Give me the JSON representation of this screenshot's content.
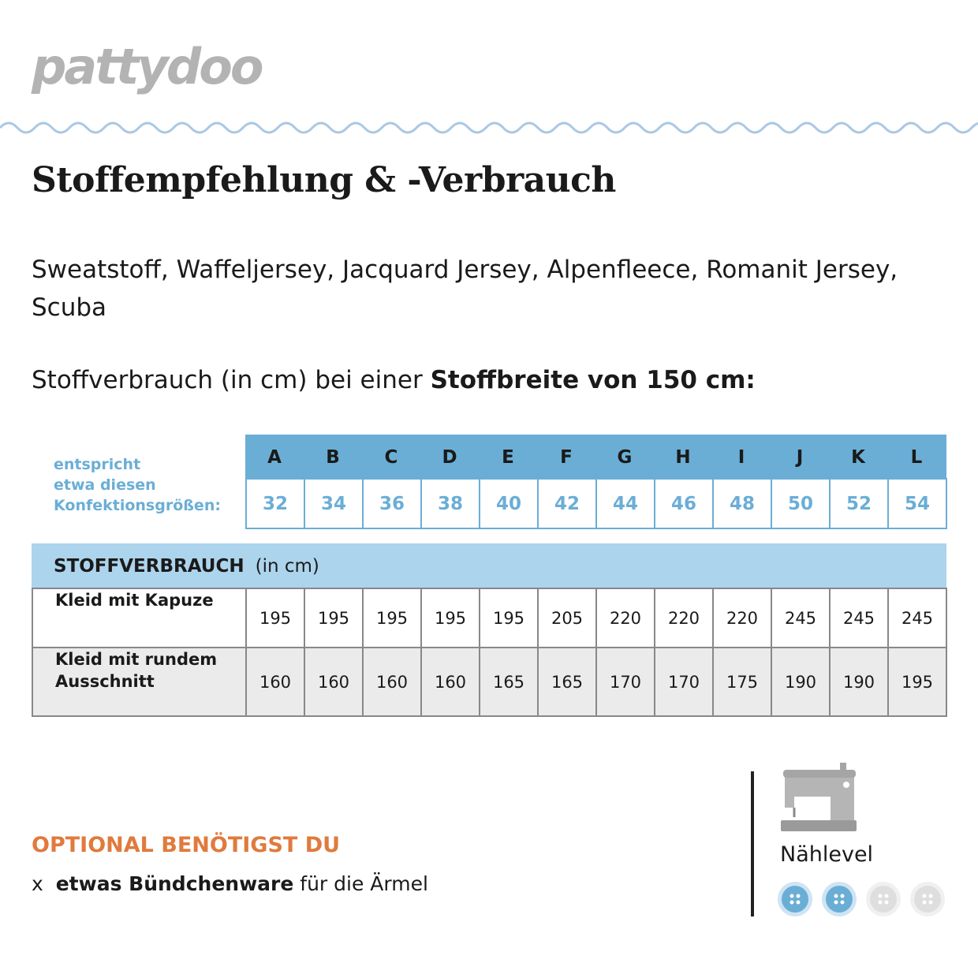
{
  "logo": "pattydoo",
  "title": "Stoffempfehlung & -Verbrauch",
  "fabrics": "Sweatstoff, Waffeljersey, Jacquard Jersey, Alpenfleece, Romanit Jersey, Scuba",
  "consumption_intro": {
    "text": "Stoffverbrauch (in cm) bei einer",
    "bold": "Stoffbreite von 150 cm:"
  },
  "size_table": {
    "label_lines": [
      "entspricht",
      "etwa diesen",
      "Konfektionsgrößen:"
    ],
    "letters": [
      "A",
      "B",
      "C",
      "D",
      "E",
      "F",
      "G",
      "H",
      "I",
      "J",
      "K",
      "L"
    ],
    "sizes": [
      32,
      34,
      36,
      38,
      40,
      42,
      44,
      46,
      48,
      50,
      52,
      54
    ]
  },
  "usage_table": {
    "header": "STOFFVERBRAUCH",
    "unit": "(in cm)",
    "rows": [
      {
        "label": [
          "Kleid mit Kapuze"
        ],
        "values": [
          195,
          195,
          195,
          195,
          195,
          205,
          220,
          220,
          220,
          245,
          245,
          245
        ]
      },
      {
        "label": [
          "Kleid mit rundem",
          "Ausschnitt"
        ],
        "values": [
          160,
          160,
          160,
          160,
          165,
          165,
          170,
          170,
          175,
          190,
          190,
          195
        ]
      }
    ]
  },
  "optional": {
    "heading": "OPTIONAL BENÖTIGST DU",
    "items": [
      {
        "marker": "x",
        "bold": "etwas Bündchenware",
        "text": "für die Ärmel"
      }
    ]
  },
  "sewing_level": {
    "label": "Nählevel",
    "level": 2,
    "max": 4
  }
}
